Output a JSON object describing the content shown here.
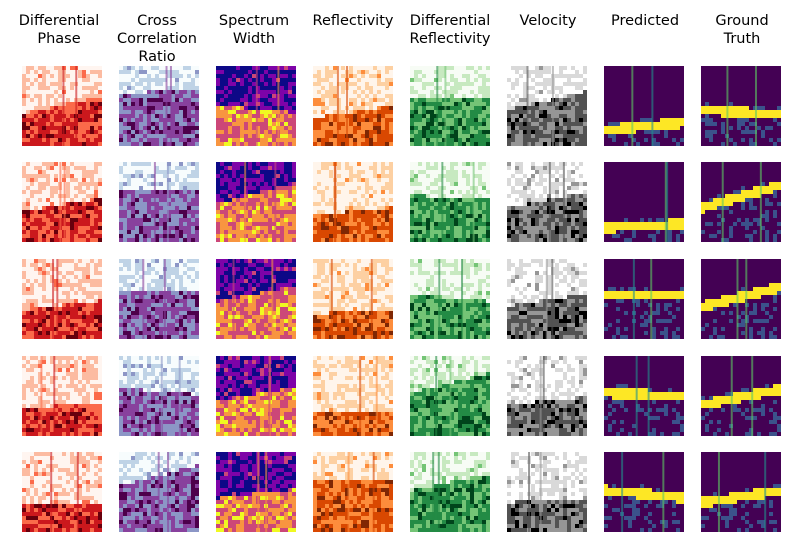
{
  "figure": {
    "columns": [
      {
        "key": "differential_phase",
        "header": "Differential\nPhase",
        "colormap": "Reds",
        "colors": [
          "#fff5f0",
          "#fcbba1",
          "#fb6a4a",
          "#cb181d",
          "#67000d"
        ]
      },
      {
        "key": "cross_correlation_ratio",
        "header": "Cross\nCorrelation\nRatio",
        "colormap": "BuPu",
        "colors": [
          "#f7fcfd",
          "#bfd3e6",
          "#8c96c6",
          "#88419d",
          "#4d004b"
        ]
      },
      {
        "key": "spectrum_width",
        "header": "Spectrum\nWidth",
        "colormap": "plasma",
        "colors": [
          "#0d0887",
          "#7e03a8",
          "#cc4778",
          "#f89540",
          "#f0f921"
        ]
      },
      {
        "key": "reflectivity",
        "header": "Reflectivity",
        "colormap": "Oranges",
        "colors": [
          "#fff5eb",
          "#fdd0a2",
          "#fd8d3c",
          "#d94801",
          "#7f2704"
        ]
      },
      {
        "key": "differential_reflectivity",
        "header": "Differential\nReflectivity",
        "colormap": "Greens",
        "colors": [
          "#f7fcf5",
          "#c7e9c0",
          "#74c476",
          "#238b45",
          "#00441b"
        ]
      },
      {
        "key": "velocity",
        "header": "Velocity",
        "colormap": "Greys",
        "colors": [
          "#ffffff",
          "#d9d9d9",
          "#969696",
          "#525252",
          "#000000"
        ]
      },
      {
        "key": "predicted",
        "header": "Predicted",
        "colormap": "viridis",
        "colors": [
          "#440154",
          "#3b528b",
          "#21918c",
          "#5ec962",
          "#fde725"
        ]
      },
      {
        "key": "ground_truth",
        "header": "Ground\nTruth",
        "colormap": "viridis",
        "colors": [
          "#440154",
          "#3b528b",
          "#21918c",
          "#5ec962",
          "#fde725"
        ]
      }
    ],
    "row_count": 5
  }
}
